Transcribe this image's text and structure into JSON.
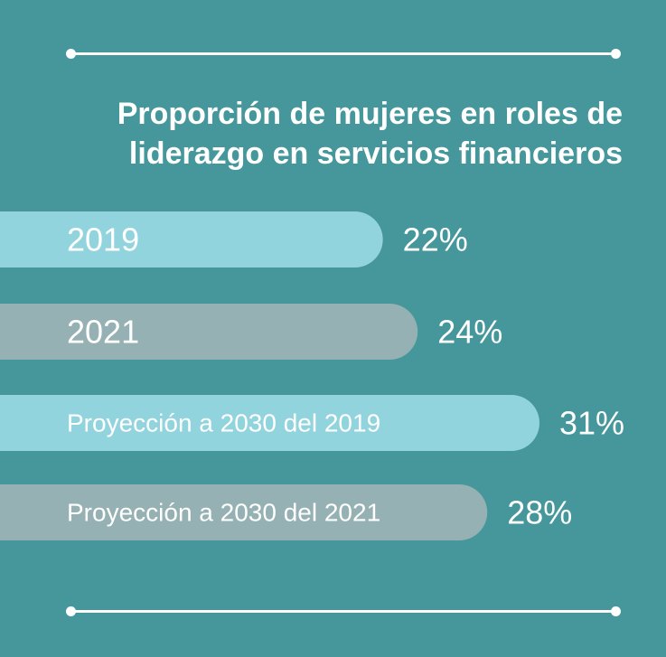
{
  "chart_data": {
    "type": "bar",
    "orientation": "horizontal",
    "title": "Proporción de mujeres en roles de liderazgo en servicios financieros",
    "categories": [
      "2019",
      "2021",
      "Proyección a 2030 del 2019",
      "Proyección a 2030 del 2021"
    ],
    "values": [
      22,
      24,
      31,
      28
    ],
    "value_labels": [
      "22%",
      "24%",
      "31%",
      "28%"
    ],
    "unit": "%",
    "xlim": [
      0,
      31
    ],
    "grid": false,
    "legend": "none"
  },
  "colors": {
    "background": "#45979b",
    "bar_light": "#92d4dd",
    "bar_gray": "#96b1b3",
    "text": "#ffffff"
  }
}
